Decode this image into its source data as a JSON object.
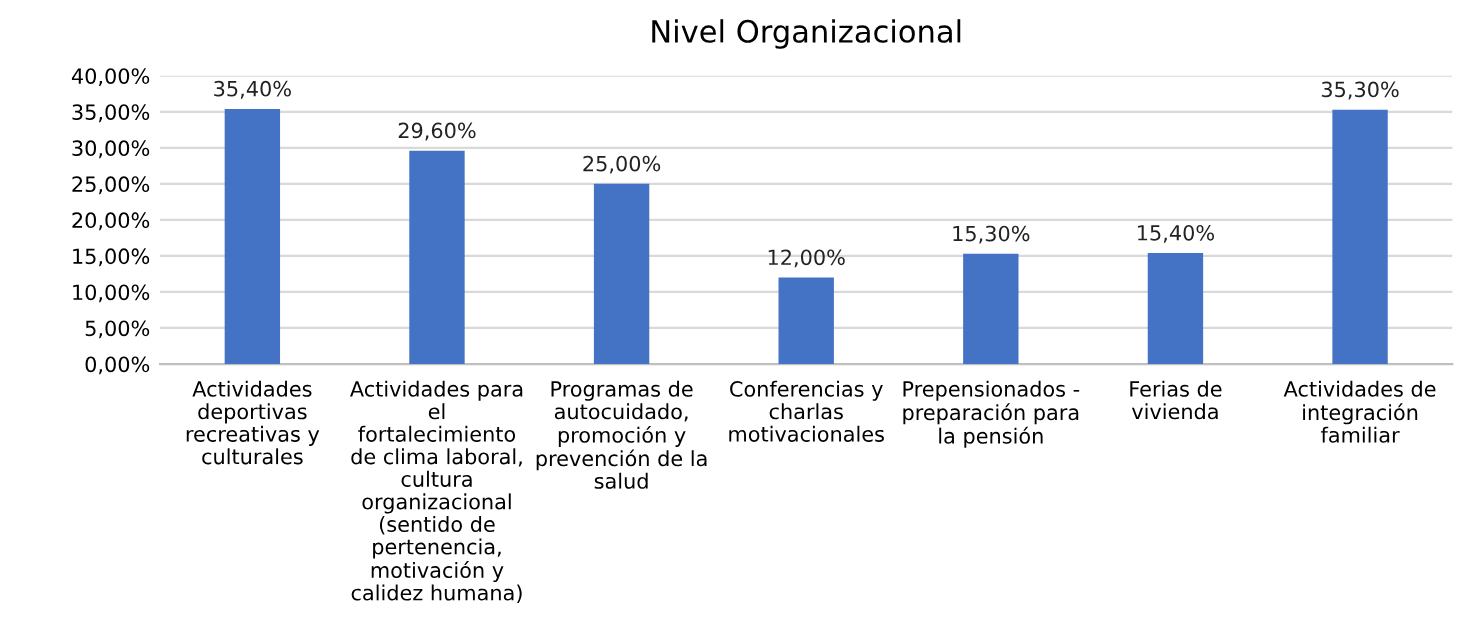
{
  "chart_data": {
    "type": "bar",
    "title": "Nivel Organizacional",
    "categories": [
      "Actividades\ndeportivas\nrecreativas y\nculturales",
      "Actividades para\nel\nfortalecimiento\nde clima laboral,\ncultura\norganizacional\n(sentido de\npertenencia,\nmotivación y\ncalidez humana)",
      "Programas de\nautocuidado,\npromoción y\nprevención de la\nsalud",
      "Conferencias y\ncharlas\nmotivacionales",
      "Prepensionados -\npreparación para\nla pensión",
      "Ferias de\nvivienda",
      "Actividades de\nintegración\nfamiliar"
    ],
    "values": [
      35.4,
      29.6,
      25.0,
      12.0,
      15.3,
      15.4,
      35.3
    ],
    "value_labels": [
      "35,40%",
      "29,60%",
      "25,00%",
      "12,00%",
      "15,30%",
      "15,40%",
      "35,30%"
    ],
    "color": "#4472c4",
    "ylim": [
      0,
      40
    ],
    "yticks": [
      {
        "value": 0,
        "label": "0,00%"
      },
      {
        "value": 5,
        "label": "5,00%"
      },
      {
        "value": 10,
        "label": "10,00%"
      },
      {
        "value": 15,
        "label": "15,00%"
      },
      {
        "value": 20,
        "label": "20,00%"
      },
      {
        "value": 25,
        "label": "25,00%"
      },
      {
        "value": 30,
        "label": "30,00%"
      },
      {
        "value": 35,
        "label": "35,00%"
      },
      {
        "value": 40,
        "label": "40,00%"
      }
    ],
    "grid": "y"
  }
}
